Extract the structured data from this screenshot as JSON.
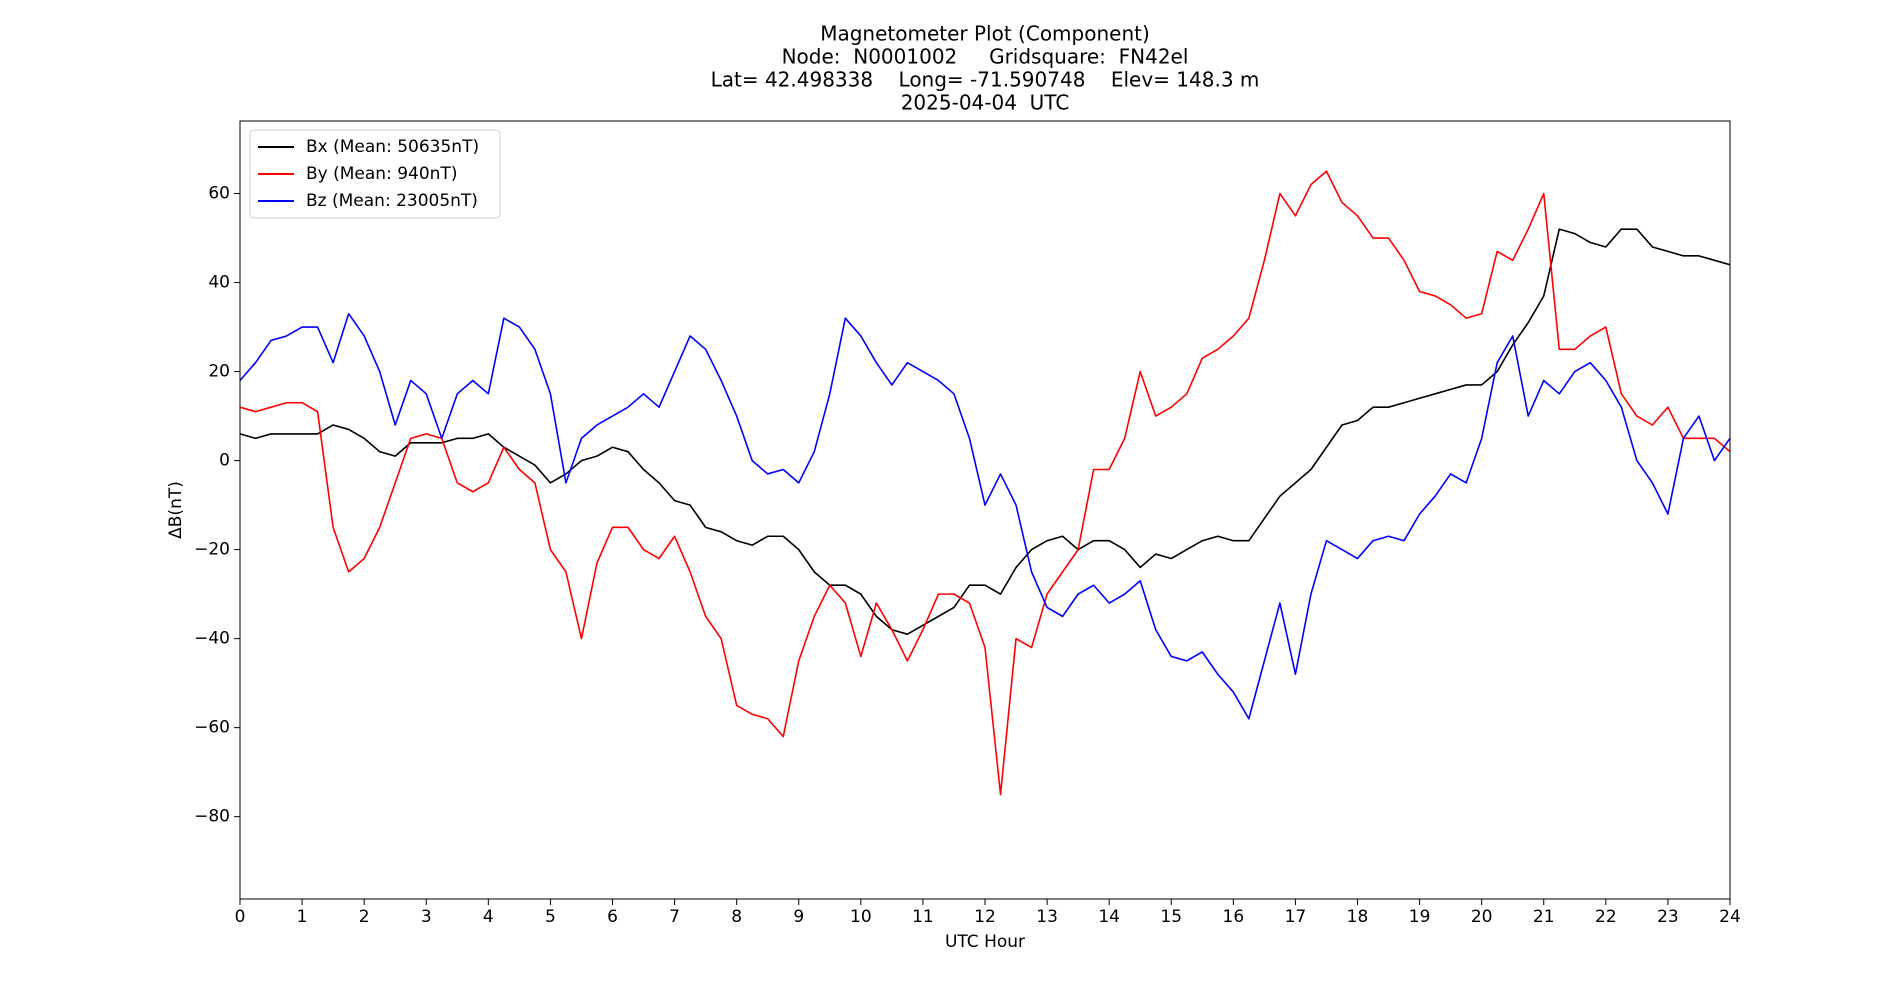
{
  "chart_data": {
    "type": "line",
    "title": [
      "Magnetometer Plot (Component)",
      "Node:  N0001002     Gridsquare:  FN42el",
      "Lat= 42.498338    Long= -71.590748    Elev= 148.3 m",
      "2025-04-04  UTC"
    ],
    "x_label": "UTC Hour",
    "y_label": "ΔB(nT)",
    "xlim": [
      0,
      24
    ],
    "xticks": [
      0,
      1,
      2,
      3,
      4,
      5,
      6,
      7,
      8,
      9,
      10,
      11,
      12,
      13,
      14,
      15,
      16,
      17,
      18,
      19,
      20,
      21,
      22,
      23,
      24
    ],
    "ylim": [
      -98.5,
      76.3
    ],
    "yticks": [
      {
        "value": -80,
        "label": "−80"
      },
      {
        "value": -60,
        "label": "−60"
      },
      {
        "value": -40,
        "label": "−40"
      },
      {
        "value": -20,
        "label": "−20"
      },
      0,
      20,
      40,
      60
    ],
    "legend": "upper left",
    "x": [
      0,
      0.25,
      0.5,
      0.75,
      1,
      1.25,
      1.5,
      1.75,
      2,
      2.25,
      2.5,
      2.75,
      3,
      3.25,
      3.5,
      3.75,
      4,
      4.25,
      4.5,
      4.75,
      5,
      5.25,
      5.5,
      5.75,
      6,
      6.25,
      6.5,
      6.75,
      7,
      7.25,
      7.5,
      7.75,
      8,
      8.25,
      8.5,
      8.75,
      9,
      9.25,
      9.5,
      9.75,
      10,
      10.25,
      10.5,
      10.75,
      11,
      11.25,
      11.5,
      11.75,
      12,
      12.25,
      12.5,
      12.75,
      13,
      13.25,
      13.5,
      13.75,
      14,
      14.25,
      14.5,
      14.75,
      15,
      15.25,
      15.5,
      15.75,
      16,
      16.25,
      16.5,
      16.75,
      17,
      17.25,
      17.5,
      17.75,
      18,
      18.25,
      18.5,
      18.75,
      19,
      19.25,
      19.5,
      19.75,
      20,
      20.25,
      20.5,
      20.75,
      21,
      21.25,
      21.5,
      21.75,
      22,
      22.25,
      22.5,
      22.75,
      23,
      23.25,
      23.5,
      23.75,
      24
    ],
    "series": [
      {
        "name": "Bx (Mean: 50635nT)",
        "color": "#000000",
        "values": [
          6,
          5,
          6,
          6,
          6,
          6,
          8,
          7,
          5,
          2,
          1,
          4,
          4,
          4,
          5,
          5,
          6,
          3,
          1,
          -1,
          -5,
          -3,
          0,
          1,
          3,
          2,
          -2,
          -5,
          -9,
          -10,
          -15,
          -16,
          -18,
          -19,
          -17,
          -17,
          -20,
          -25,
          -28,
          -28,
          -30,
          -35,
          -38,
          -39,
          -37,
          -35,
          -33,
          -28,
          -28,
          -30,
          -24,
          -20,
          -18,
          -17,
          -20,
          -18,
          -18,
          -20,
          -24,
          -21,
          -22,
          -20,
          -18,
          -17,
          -18,
          -18,
          -13,
          -8,
          -5,
          -2,
          3,
          8,
          9,
          12,
          12,
          13,
          14,
          15,
          16,
          17,
          17,
          20,
          26,
          31,
          37,
          52,
          51,
          49,
          48,
          52,
          52,
          48,
          47,
          46,
          46,
          45,
          44
        ]
      },
      {
        "name": "By (Mean: 940nT)",
        "color": "#ff0000",
        "values": [
          12,
          11,
          12,
          13,
          13,
          11,
          -15,
          -25,
          -22,
          -15,
          -5,
          5,
          6,
          5,
          -5,
          -7,
          -5,
          3,
          -2,
          -5,
          -20,
          -25,
          -40,
          -23,
          -15,
          -15,
          -20,
          -22,
          -17,
          -25,
          -35,
          -40,
          -55,
          -57,
          -58,
          -62,
          -45,
          -35,
          -28,
          -32,
          -44,
          -32,
          -38,
          -45,
          -38,
          -30,
          -30,
          -32,
          -42,
          -75,
          -40,
          -42,
          -30,
          -25,
          -20,
          -2,
          -2,
          5,
          20,
          10,
          12,
          15,
          23,
          25,
          28,
          32,
          45,
          60,
          55,
          62,
          65,
          58,
          55,
          50,
          50,
          45,
          38,
          37,
          35,
          32,
          33,
          47,
          45,
          52,
          60,
          25,
          25,
          28,
          30,
          15,
          10,
          8,
          12,
          5,
          5,
          5,
          2
        ]
      },
      {
        "name": "Bz (Mean: 23005nT)",
        "color": "#0000ff",
        "values": [
          18,
          22,
          27,
          28,
          30,
          30,
          22,
          33,
          28,
          20,
          8,
          18,
          15,
          5,
          15,
          18,
          15,
          32,
          30,
          25,
          15,
          -5,
          5,
          8,
          10,
          12,
          15,
          12,
          20,
          28,
          25,
          18,
          10,
          0,
          -3,
          -2,
          -5,
          2,
          15,
          32,
          28,
          22,
          17,
          22,
          20,
          18,
          15,
          5,
          -10,
          -3,
          -10,
          -25,
          -33,
          -35,
          -30,
          -28,
          -32,
          -30,
          -27,
          -38,
          -44,
          -45,
          -43,
          -48,
          -52,
          -58,
          -45,
          -32,
          -48,
          -30,
          -18,
          -20,
          -22,
          -18,
          -17,
          -18,
          -12,
          -8,
          -3,
          -5,
          5,
          22,
          28,
          10,
          18,
          15,
          20,
          22,
          18,
          12,
          0,
          -5,
          -12,
          5,
          10,
          0,
          5
        ]
      }
    ]
  }
}
